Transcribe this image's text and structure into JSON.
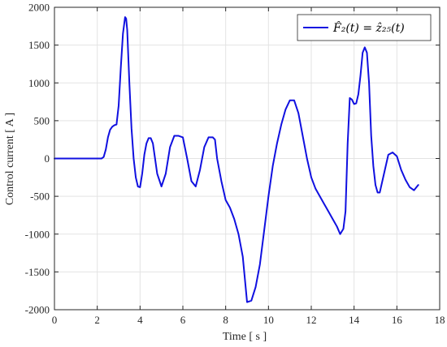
{
  "chart_data": {
    "type": "line",
    "xlabel": "Time [ s ]",
    "ylabel": "Control current [ A ]",
    "xlim": [
      0,
      18
    ],
    "ylim": [
      -2000,
      2000
    ],
    "xticks": [
      0,
      2,
      4,
      6,
      8,
      10,
      12,
      14,
      16,
      18
    ],
    "yticks": [
      -2000,
      -1500,
      -1000,
      -500,
      0,
      500,
      1000,
      1500,
      2000
    ],
    "grid": true,
    "legend_position": "top-right",
    "series": [
      {
        "name": "F̂₂(t) = ẑ₂₅(t)",
        "color": "#1010e0",
        "x": [
          0,
          2.2,
          2.3,
          2.4,
          2.5,
          2.6,
          2.7,
          2.8,
          2.9,
          3.0,
          3.1,
          3.2,
          3.3,
          3.35,
          3.4,
          3.5,
          3.6,
          3.7,
          3.8,
          3.9,
          4.0,
          4.1,
          4.2,
          4.3,
          4.4,
          4.5,
          4.6,
          4.7,
          4.8,
          5.0,
          5.2,
          5.4,
          5.6,
          5.8,
          6.0,
          6.2,
          6.4,
          6.6,
          6.8,
          7.0,
          7.2,
          7.4,
          7.5,
          7.6,
          7.8,
          8.0,
          8.2,
          8.4,
          8.6,
          8.8,
          9.0,
          9.2,
          9.4,
          9.6,
          9.8,
          10.0,
          10.2,
          10.4,
          10.6,
          10.8,
          11.0,
          11.2,
          11.4,
          11.6,
          11.8,
          12.0,
          12.2,
          12.4,
          12.6,
          12.8,
          13.0,
          13.2,
          13.35,
          13.5,
          13.6,
          13.7,
          13.8,
          13.9,
          14.0,
          14.1,
          14.2,
          14.3,
          14.4,
          14.5,
          14.6,
          14.7,
          14.8,
          14.9,
          15.0,
          15.1,
          15.2,
          15.4,
          15.6,
          15.8,
          16.0,
          16.2,
          16.4,
          16.6,
          16.8,
          17.0
        ],
        "y": [
          0,
          0,
          20,
          120,
          280,
          380,
          420,
          440,
          450,
          700,
          1200,
          1650,
          1870,
          1850,
          1700,
          1000,
          400,
          0,
          -250,
          -370,
          -380,
          -200,
          50,
          200,
          270,
          270,
          200,
          0,
          -200,
          -370,
          -200,
          150,
          300,
          300,
          280,
          0,
          -300,
          -370,
          -150,
          150,
          280,
          280,
          250,
          0,
          -300,
          -550,
          -650,
          -800,
          -1000,
          -1300,
          -1900,
          -1880,
          -1700,
          -1400,
          -950,
          -500,
          -100,
          200,
          450,
          650,
          770,
          770,
          600,
          300,
          0,
          -250,
          -400,
          -500,
          -600,
          -700,
          -800,
          -900,
          -1000,
          -930,
          -700,
          200,
          800,
          780,
          720,
          730,
          850,
          1100,
          1400,
          1470,
          1400,
          1000,
          300,
          -100,
          -350,
          -450,
          -450,
          -200,
          50,
          80,
          30,
          -150,
          -280,
          -380,
          -420,
          -350
        ]
      }
    ]
  }
}
